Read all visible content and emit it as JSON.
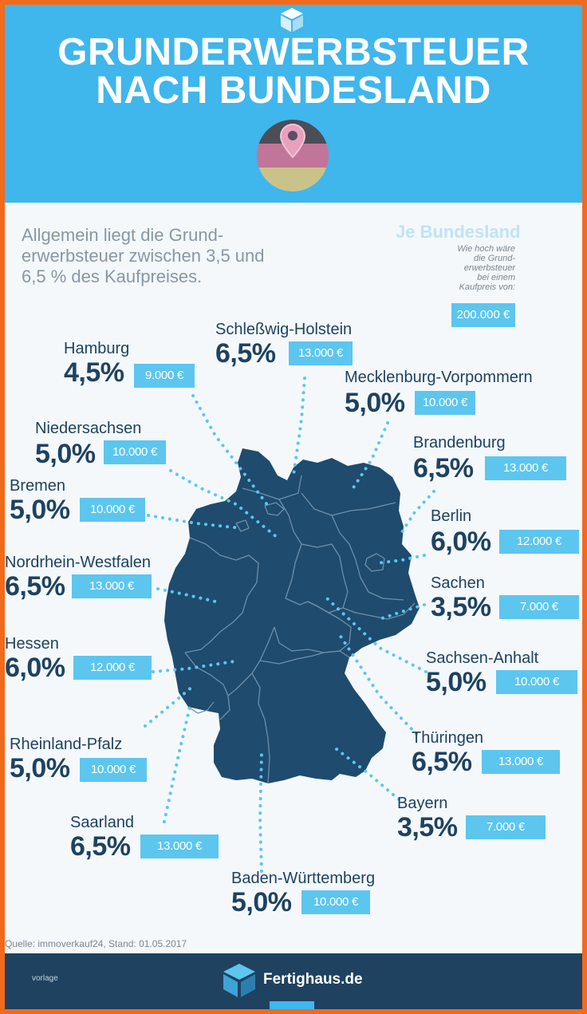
{
  "header": {
    "title_line1": "GRUNDERWERBSTEUER",
    "title_line2": "NACH BUNDESLAND"
  },
  "intro": {
    "text": "Allgemein liegt die Grund-erwerbsteuer zwischen 3,5 und 6,5 % des Kaufpreises."
  },
  "info_box": {
    "title": "Je Bundesland",
    "line1": "Wie hoch wäre",
    "line2": "die Grund-",
    "line3": "erwerbsteuer",
    "line4": "bei einem",
    "line5": "Kaufpreis von:",
    "amount": "200.000 €"
  },
  "states": [
    {
      "name": "Hamburg",
      "rate": "4,5%",
      "amount": "9.000 €"
    },
    {
      "name": "Schleßwig-Holstein",
      "rate": "6,5%",
      "amount": "13.000 €"
    },
    {
      "name": "Mecklenburg-Vorpommern",
      "rate": "5,0%",
      "amount": "10.000 €"
    },
    {
      "name": "Niedersachsen",
      "rate": "5,0%",
      "amount": "10.000 €"
    },
    {
      "name": "Brandenburg",
      "rate": "6,5%",
      "amount": "13.000 €"
    },
    {
      "name": "Bremen",
      "rate": "5,0%",
      "amount": "10.000 €"
    },
    {
      "name": "Berlin",
      "rate": "6,0%",
      "amount": "12.000 €"
    },
    {
      "name": "Nordrhein-Westfalen",
      "rate": "6,5%",
      "amount": "13.000 €"
    },
    {
      "name": "Sachen",
      "rate": "3,5%",
      "amount": "7.000 €"
    },
    {
      "name": "Hessen",
      "rate": "6,0%",
      "amount": "12.000 €"
    },
    {
      "name": "Sachsen-Anhalt",
      "rate": "5,0%",
      "amount": "10.000 €"
    },
    {
      "name": "Rheinland-Pfalz",
      "rate": "5,0%",
      "amount": "10.000 €"
    },
    {
      "name": "Thüringen",
      "rate": "6,5%",
      "amount": "13.000 €"
    },
    {
      "name": "Saarland",
      "rate": "6,5%",
      "amount": "13.000 €"
    },
    {
      "name": "Bayern",
      "rate": "3,5%",
      "amount": "7.000 €"
    },
    {
      "name": "Baden-Württemberg",
      "rate": "5,0%",
      "amount": "10.000 €"
    }
  ],
  "source": "Quelle: immoverkauf24, Stand: 01.05.2017",
  "footer": {
    "vorlage": "vorlage",
    "brand": "Fertighaus.de"
  },
  "colors": {
    "header_blue": "#3fb6ec",
    "navy": "#1e4260",
    "amount_blue": "#5cc6ef",
    "border_orange": "#f26a1b"
  },
  "icons": [
    "cube-logo-icon",
    "map-pin-icon",
    "germany-flag-icon",
    "germany-map"
  ]
}
